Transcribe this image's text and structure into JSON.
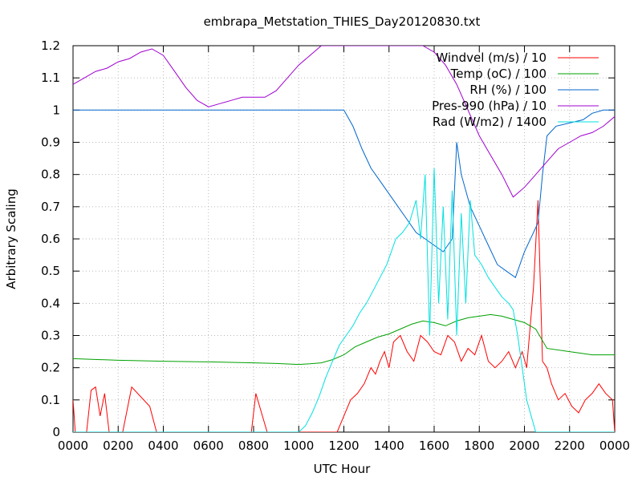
{
  "chart_data": {
    "type": "line",
    "title": "embrapa_Metstation_THIES_Day20120830.txt",
    "xlabel": "UTC Hour",
    "ylabel": "Arbitrary Scaling",
    "xlim": [
      0,
      24
    ],
    "ylim": [
      0,
      1.2
    ],
    "grid": true,
    "legend_position": "top-right",
    "x_tick_labels": [
      "0000",
      "0200",
      "0400",
      "0600",
      "0800",
      "1000",
      "1200",
      "1400",
      "1600",
      "1800",
      "2000",
      "2200",
      "0000"
    ],
    "y_tick_labels": [
      "0",
      "0.1",
      "0.2",
      "0.3",
      "0.4",
      "0.5",
      "0.6",
      "0.7",
      "0.8",
      "0.9",
      "1",
      "1.1",
      "1.2"
    ],
    "y_ticks": [
      0,
      0.1,
      0.2,
      0.3,
      0.4,
      0.5,
      0.6,
      0.7,
      0.8,
      0.9,
      1.0,
      1.1,
      1.2
    ],
    "series": [
      {
        "name": "Windvel (m/s) / 10",
        "color": "#ff0000",
        "x": [
          0,
          0.1,
          0.2,
          0.6,
          0.8,
          1.0,
          1.2,
          1.4,
          1.6,
          2.2,
          2.6,
          3.4,
          3.7,
          7.9,
          8.1,
          8.6,
          9.0,
          10.0,
          11.0,
          11.7,
          12.0,
          12.3,
          12.6,
          12.9,
          13.2,
          13.4,
          13.6,
          13.8,
          14.0,
          14.2,
          14.5,
          14.8,
          15.1,
          15.4,
          15.7,
          16.0,
          16.3,
          16.6,
          16.9,
          17.2,
          17.5,
          17.8,
          18.1,
          18.4,
          18.7,
          19.0,
          19.3,
          19.6,
          19.9,
          20.1,
          20.4,
          20.6,
          20.8,
          21.0,
          21.2,
          21.5,
          21.8,
          22.1,
          22.4,
          22.7,
          23.0,
          23.3,
          23.6,
          23.9,
          24.0
        ],
        "values": [
          0.1,
          0,
          0,
          0,
          0.13,
          0.14,
          0.05,
          0.12,
          0,
          0,
          0.14,
          0.08,
          0,
          0,
          0.12,
          0,
          0,
          0,
          0,
          0,
          0.05,
          0.1,
          0.12,
          0.15,
          0.2,
          0.18,
          0.22,
          0.25,
          0.2,
          0.28,
          0.3,
          0.25,
          0.22,
          0.3,
          0.28,
          0.25,
          0.24,
          0.3,
          0.28,
          0.22,
          0.26,
          0.24,
          0.3,
          0.22,
          0.2,
          0.22,
          0.25,
          0.2,
          0.25,
          0.2,
          0.45,
          0.72,
          0.22,
          0.2,
          0.15,
          0.1,
          0.12,
          0.08,
          0.06,
          0.1,
          0.12,
          0.15,
          0.12,
          0.1,
          0
        ]
      },
      {
        "name": "Temp (oC) / 100",
        "color": "#00a000",
        "x": [
          0,
          2,
          4,
          6,
          8,
          9,
          10,
          10.5,
          11,
          11.5,
          12,
          12.5,
          13,
          13.5,
          14,
          14.5,
          15,
          15.5,
          16,
          16.5,
          17,
          17.5,
          18,
          18.5,
          19,
          19.5,
          20,
          20.5,
          21,
          22,
          23,
          24
        ],
        "values": [
          0.228,
          0.223,
          0.22,
          0.218,
          0.215,
          0.213,
          0.21,
          0.212,
          0.215,
          0.225,
          0.24,
          0.265,
          0.28,
          0.295,
          0.305,
          0.32,
          0.335,
          0.345,
          0.34,
          0.33,
          0.345,
          0.355,
          0.36,
          0.365,
          0.36,
          0.35,
          0.34,
          0.32,
          0.26,
          0.25,
          0.24,
          0.24
        ]
      },
      {
        "name": "RH (%) / 100",
        "color": "#0066cc",
        "x": [
          0,
          4,
          8,
          11,
          12,
          12.4,
          12.8,
          13.2,
          13.6,
          14.0,
          14.4,
          14.8,
          15.2,
          15.6,
          16.0,
          16.4,
          16.8,
          17.0,
          17.2,
          17.6,
          18.0,
          18.4,
          18.8,
          19.2,
          19.6,
          19.8,
          20.0,
          20.4,
          20.6,
          20.8,
          21.0,
          21.4,
          22.0,
          22.6,
          23.0,
          23.5,
          24.0
        ],
        "values": [
          1.0,
          1.0,
          1.0,
          1.0,
          1.0,
          0.95,
          0.88,
          0.82,
          0.78,
          0.74,
          0.7,
          0.66,
          0.62,
          0.6,
          0.58,
          0.56,
          0.6,
          0.9,
          0.8,
          0.7,
          0.64,
          0.58,
          0.52,
          0.5,
          0.48,
          0.52,
          0.56,
          0.62,
          0.65,
          0.8,
          0.92,
          0.95,
          0.96,
          0.97,
          0.99,
          1.0,
          1.0
        ]
      },
      {
        "name": "Pres-990 (hPa) / 10",
        "color": "#a000d0",
        "x": [
          0,
          0.5,
          1,
          1.5,
          2,
          2.5,
          3,
          3.5,
          4,
          4.5,
          5,
          5.5,
          6,
          6.5,
          7,
          7.5,
          8,
          8.5,
          9,
          9.5,
          10,
          10.5,
          11,
          11.5,
          12,
          12.5,
          13,
          13.5,
          14,
          14.5,
          15,
          15.5,
          16,
          16.5,
          17,
          17.5,
          18,
          18.5,
          19,
          19.5,
          20,
          20.5,
          21,
          21.5,
          22,
          22.5,
          23,
          23.5,
          24
        ],
        "values": [
          1.08,
          1.1,
          1.12,
          1.13,
          1.15,
          1.16,
          1.18,
          1.19,
          1.17,
          1.12,
          1.07,
          1.03,
          1.01,
          1.02,
          1.03,
          1.04,
          1.04,
          1.04,
          1.06,
          1.1,
          1.14,
          1.17,
          1.2,
          1.2,
          1.2,
          1.2,
          1.2,
          1.2,
          1.2,
          1.2,
          1.2,
          1.2,
          1.18,
          1.14,
          1.08,
          1.0,
          0.92,
          0.86,
          0.8,
          0.73,
          0.76,
          0.8,
          0.84,
          0.88,
          0.9,
          0.92,
          0.93,
          0.95,
          0.98
        ]
      },
      {
        "name": "Rad (W/m2) / 1400",
        "color": "#00e0e0",
        "x": [
          0,
          10,
          10.3,
          10.6,
          10.9,
          11.2,
          11.5,
          11.8,
          12.1,
          12.4,
          12.7,
          13.0,
          13.3,
          13.6,
          13.9,
          14.1,
          14.3,
          14.6,
          14.9,
          15.2,
          15.4,
          15.6,
          15.8,
          16.0,
          16.2,
          16.4,
          16.6,
          16.8,
          17.0,
          17.2,
          17.4,
          17.6,
          17.8,
          18.1,
          18.4,
          18.7,
          19.0,
          19.3,
          19.5,
          19.7,
          19.9,
          20.1,
          20.3,
          20.5,
          24
        ],
        "values": [
          0,
          0,
          0.02,
          0.06,
          0.11,
          0.17,
          0.22,
          0.27,
          0.3,
          0.33,
          0.37,
          0.4,
          0.44,
          0.48,
          0.52,
          0.56,
          0.6,
          0.62,
          0.65,
          0.72,
          0.6,
          0.8,
          0.3,
          0.82,
          0.4,
          0.7,
          0.35,
          0.75,
          0.3,
          0.68,
          0.4,
          0.72,
          0.55,
          0.52,
          0.48,
          0.45,
          0.42,
          0.4,
          0.38,
          0.3,
          0.2,
          0.1,
          0.05,
          0.0,
          0
        ]
      }
    ]
  }
}
